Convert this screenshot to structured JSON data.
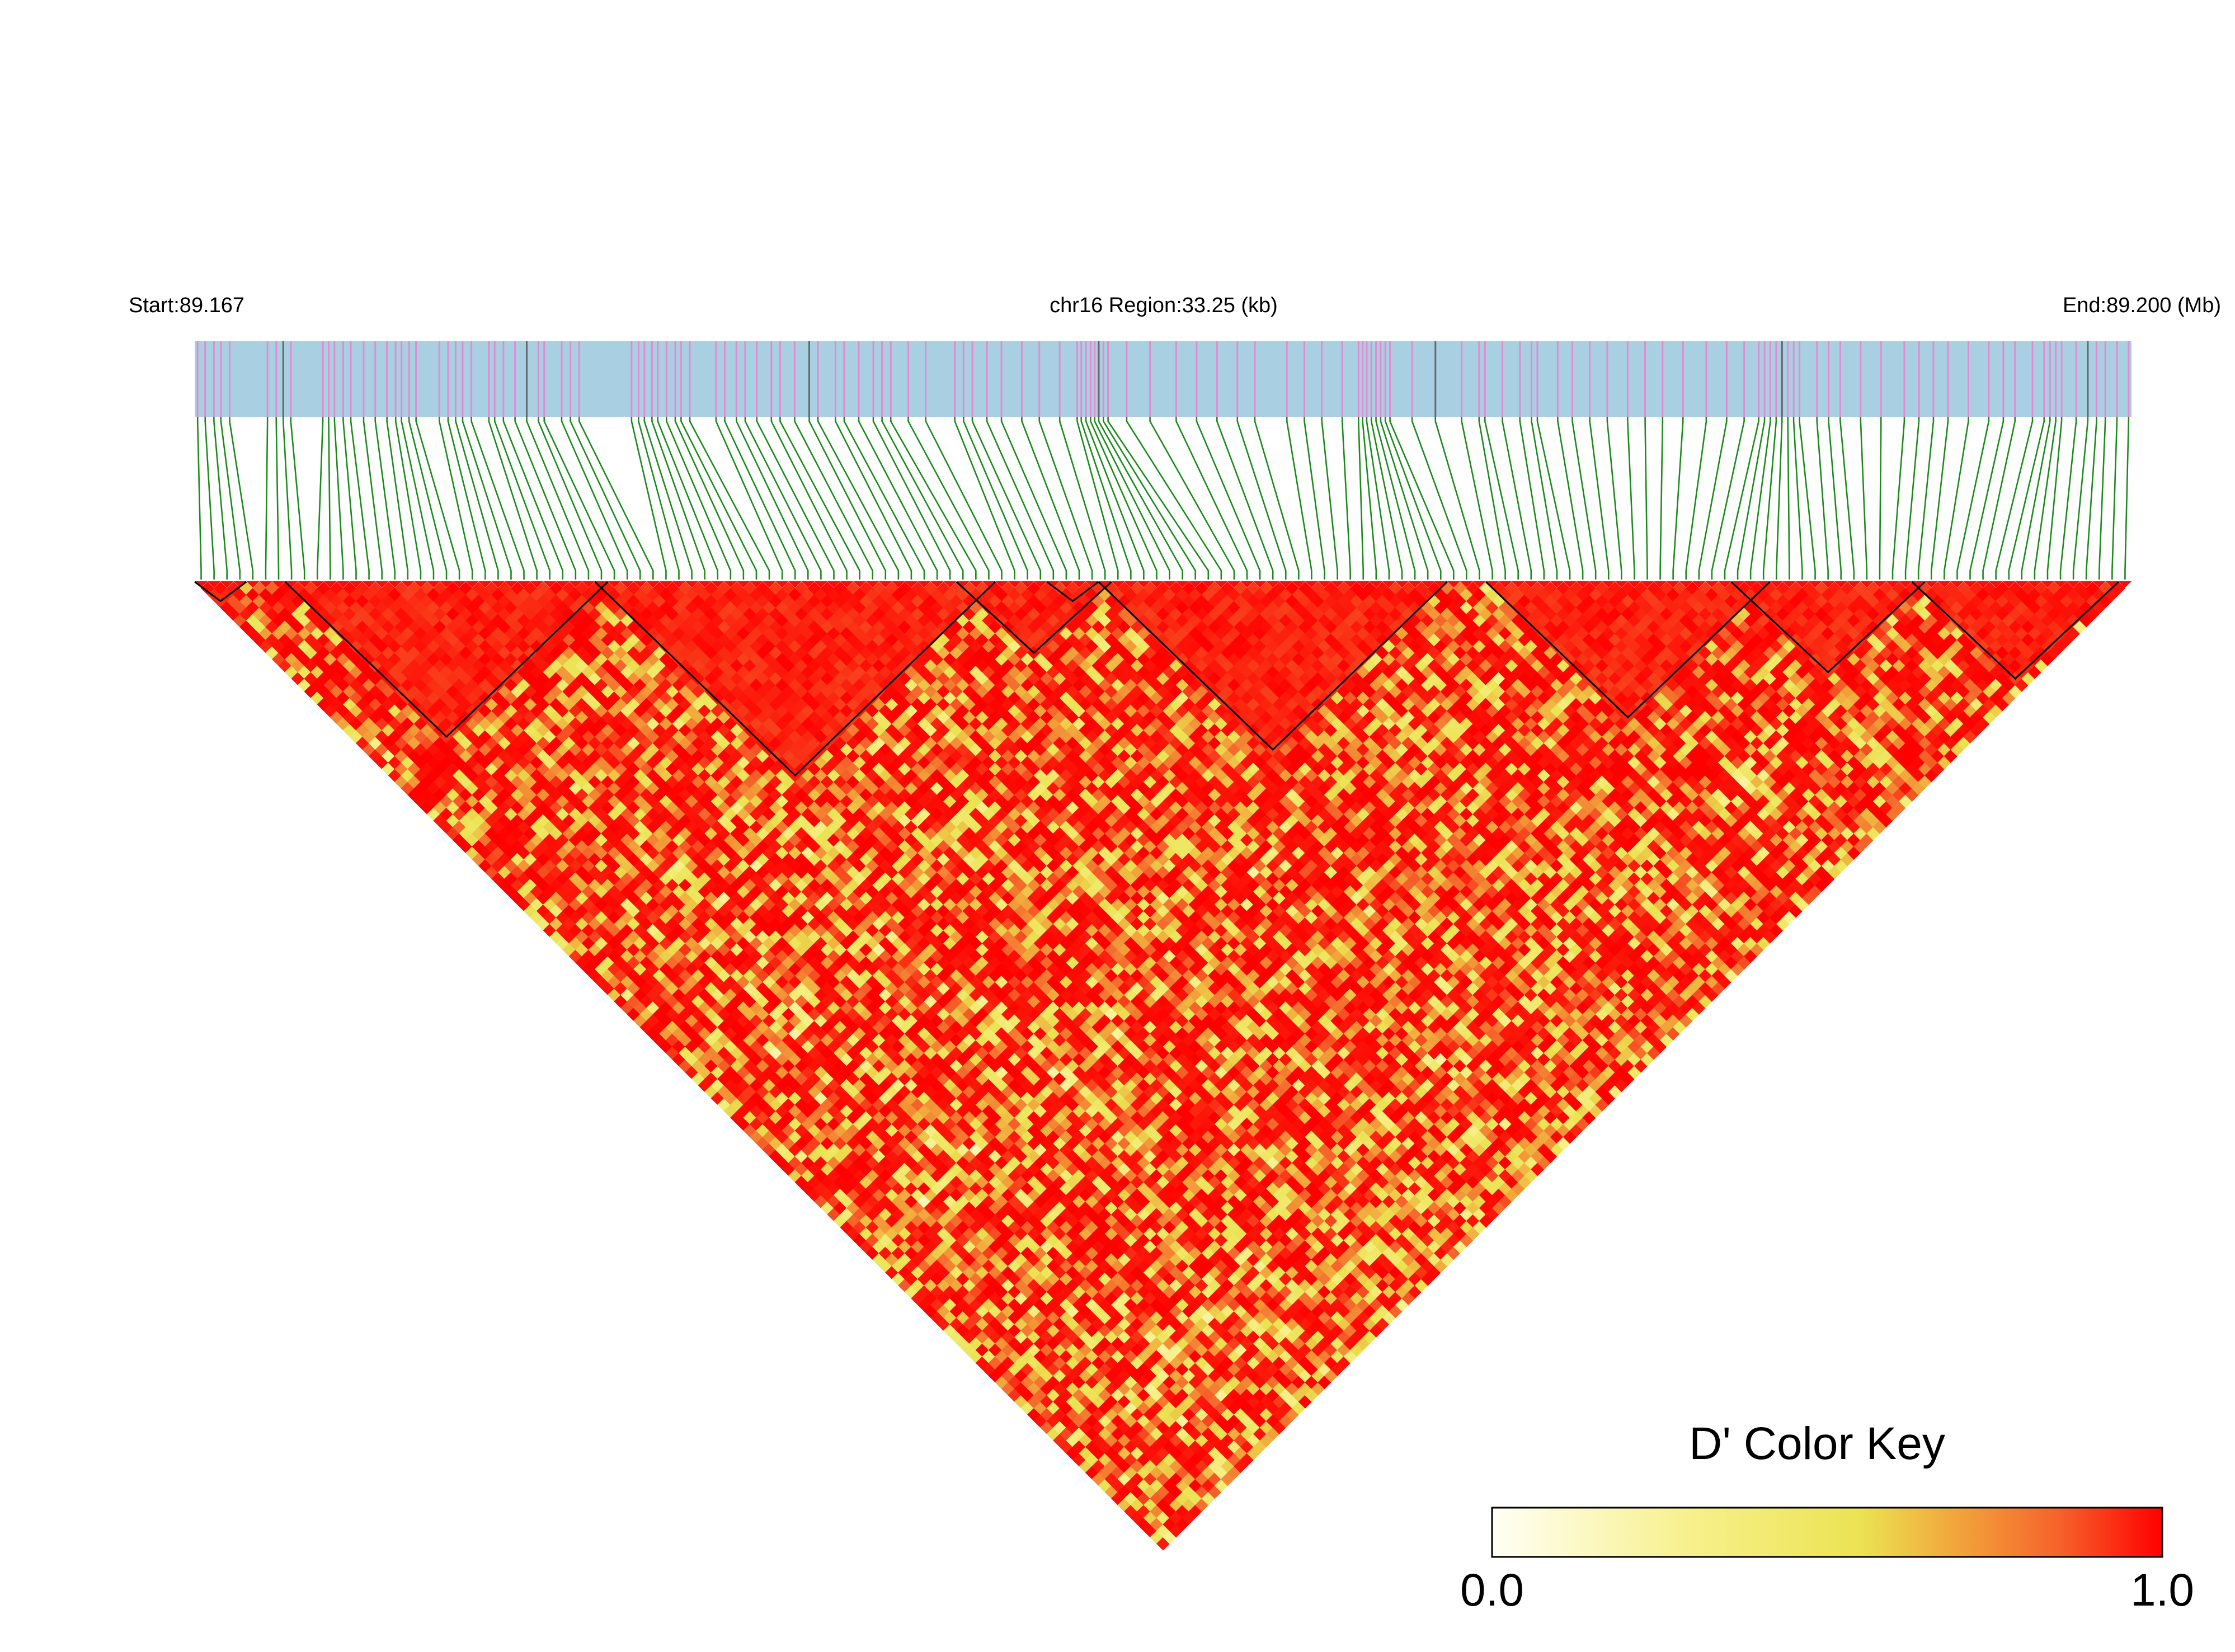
{
  "chart_data": {
    "type": "heatmap",
    "subtype": "LD triangle (D')",
    "header": {
      "start_label": "Start:89.167",
      "region_label": "chr16 Region:33.25 (kb)",
      "end_label": "End:89.200 (Mb)"
    },
    "chromosome": "chr16",
    "region_start_mb": 89.167,
    "region_end_mb": 89.2,
    "region_length_kb": 33.25,
    "snp_count": 150,
    "snp_positions_kb": [
      0.05,
      0.18,
      0.33,
      0.45,
      0.6,
      1.25,
      1.4,
      1.52,
      1.65,
      2.2,
      2.3,
      2.4,
      2.55,
      2.68,
      2.9,
      3.1,
      3.3,
      3.45,
      3.55,
      3.68,
      3.8,
      4.2,
      4.35,
      4.48,
      4.6,
      4.75,
      5.05,
      5.15,
      5.3,
      5.5,
      5.7,
      5.9,
      6.0,
      6.3,
      6.45,
      6.6,
      7.5,
      7.62,
      7.72,
      7.85,
      7.95,
      8.1,
      8.25,
      8.35,
      8.5,
      8.95,
      9.1,
      9.3,
      9.45,
      9.65,
      9.9,
      10.05,
      10.3,
      10.55,
      10.7,
      11.0,
      11.15,
      11.4,
      11.65,
      11.8,
      11.95,
      12.25,
      12.55,
      13.05,
      13.2,
      13.35,
      13.6,
      13.85,
      14.2,
      14.5,
      14.85,
      15.15,
      15.22,
      15.3,
      15.38,
      15.45,
      15.52,
      15.6,
      15.68,
      16.0,
      16.4,
      16.85,
      17.2,
      17.55,
      17.9,
      18.2,
      18.75,
      19.05,
      19.35,
      19.7,
      19.98,
      20.05,
      20.12,
      20.2,
      20.28,
      20.36,
      20.44,
      20.52,
      20.9,
      21.3,
      21.75,
      22.05,
      22.15,
      22.45,
      22.75,
      22.95,
      23.05,
      23.4,
      23.65,
      23.95,
      24.25,
      24.6,
      24.9,
      25.2,
      25.55,
      25.95,
      26.3,
      26.6,
      26.85,
      26.95,
      27.05,
      27.15,
      27.25,
      27.35,
      27.45,
      27.55,
      27.85,
      28.05,
      28.25,
      28.6,
      28.95,
      29.35,
      29.6,
      29.85,
      30.1,
      30.45,
      30.8,
      31.05,
      31.25,
      31.55,
      31.75,
      31.85,
      31.95,
      32.05,
      32.3,
      32.5,
      32.65,
      32.8,
      33.0,
      33.2
    ],
    "haplotype_blocks": [
      [
        0,
        3
      ],
      [
        7,
        31
      ],
      [
        31,
        61
      ],
      [
        59,
        70
      ],
      [
        70,
        96
      ],
      [
        66,
        69
      ],
      [
        100,
        121
      ],
      [
        119,
        133
      ],
      [
        133,
        148
      ]
    ],
    "dprime_model": {
      "base": 0.8,
      "noise_amplitude": 0.35,
      "seed": 7,
      "in_block_value": 0.96
    },
    "legend": {
      "title": "D' Color Key",
      "min_label": "0.0",
      "max_label": "1.0",
      "placement": "bottom-right"
    },
    "colors": {
      "track_fill": "#a9cfe3",
      "snp_mark": "#e58ad1",
      "snp_mark_dark": "#666666",
      "connector": "#1a8a1a",
      "low": "#fffff2",
      "mid": "#ebe352",
      "high": "#ff0000",
      "block_outline": "#000000"
    }
  }
}
